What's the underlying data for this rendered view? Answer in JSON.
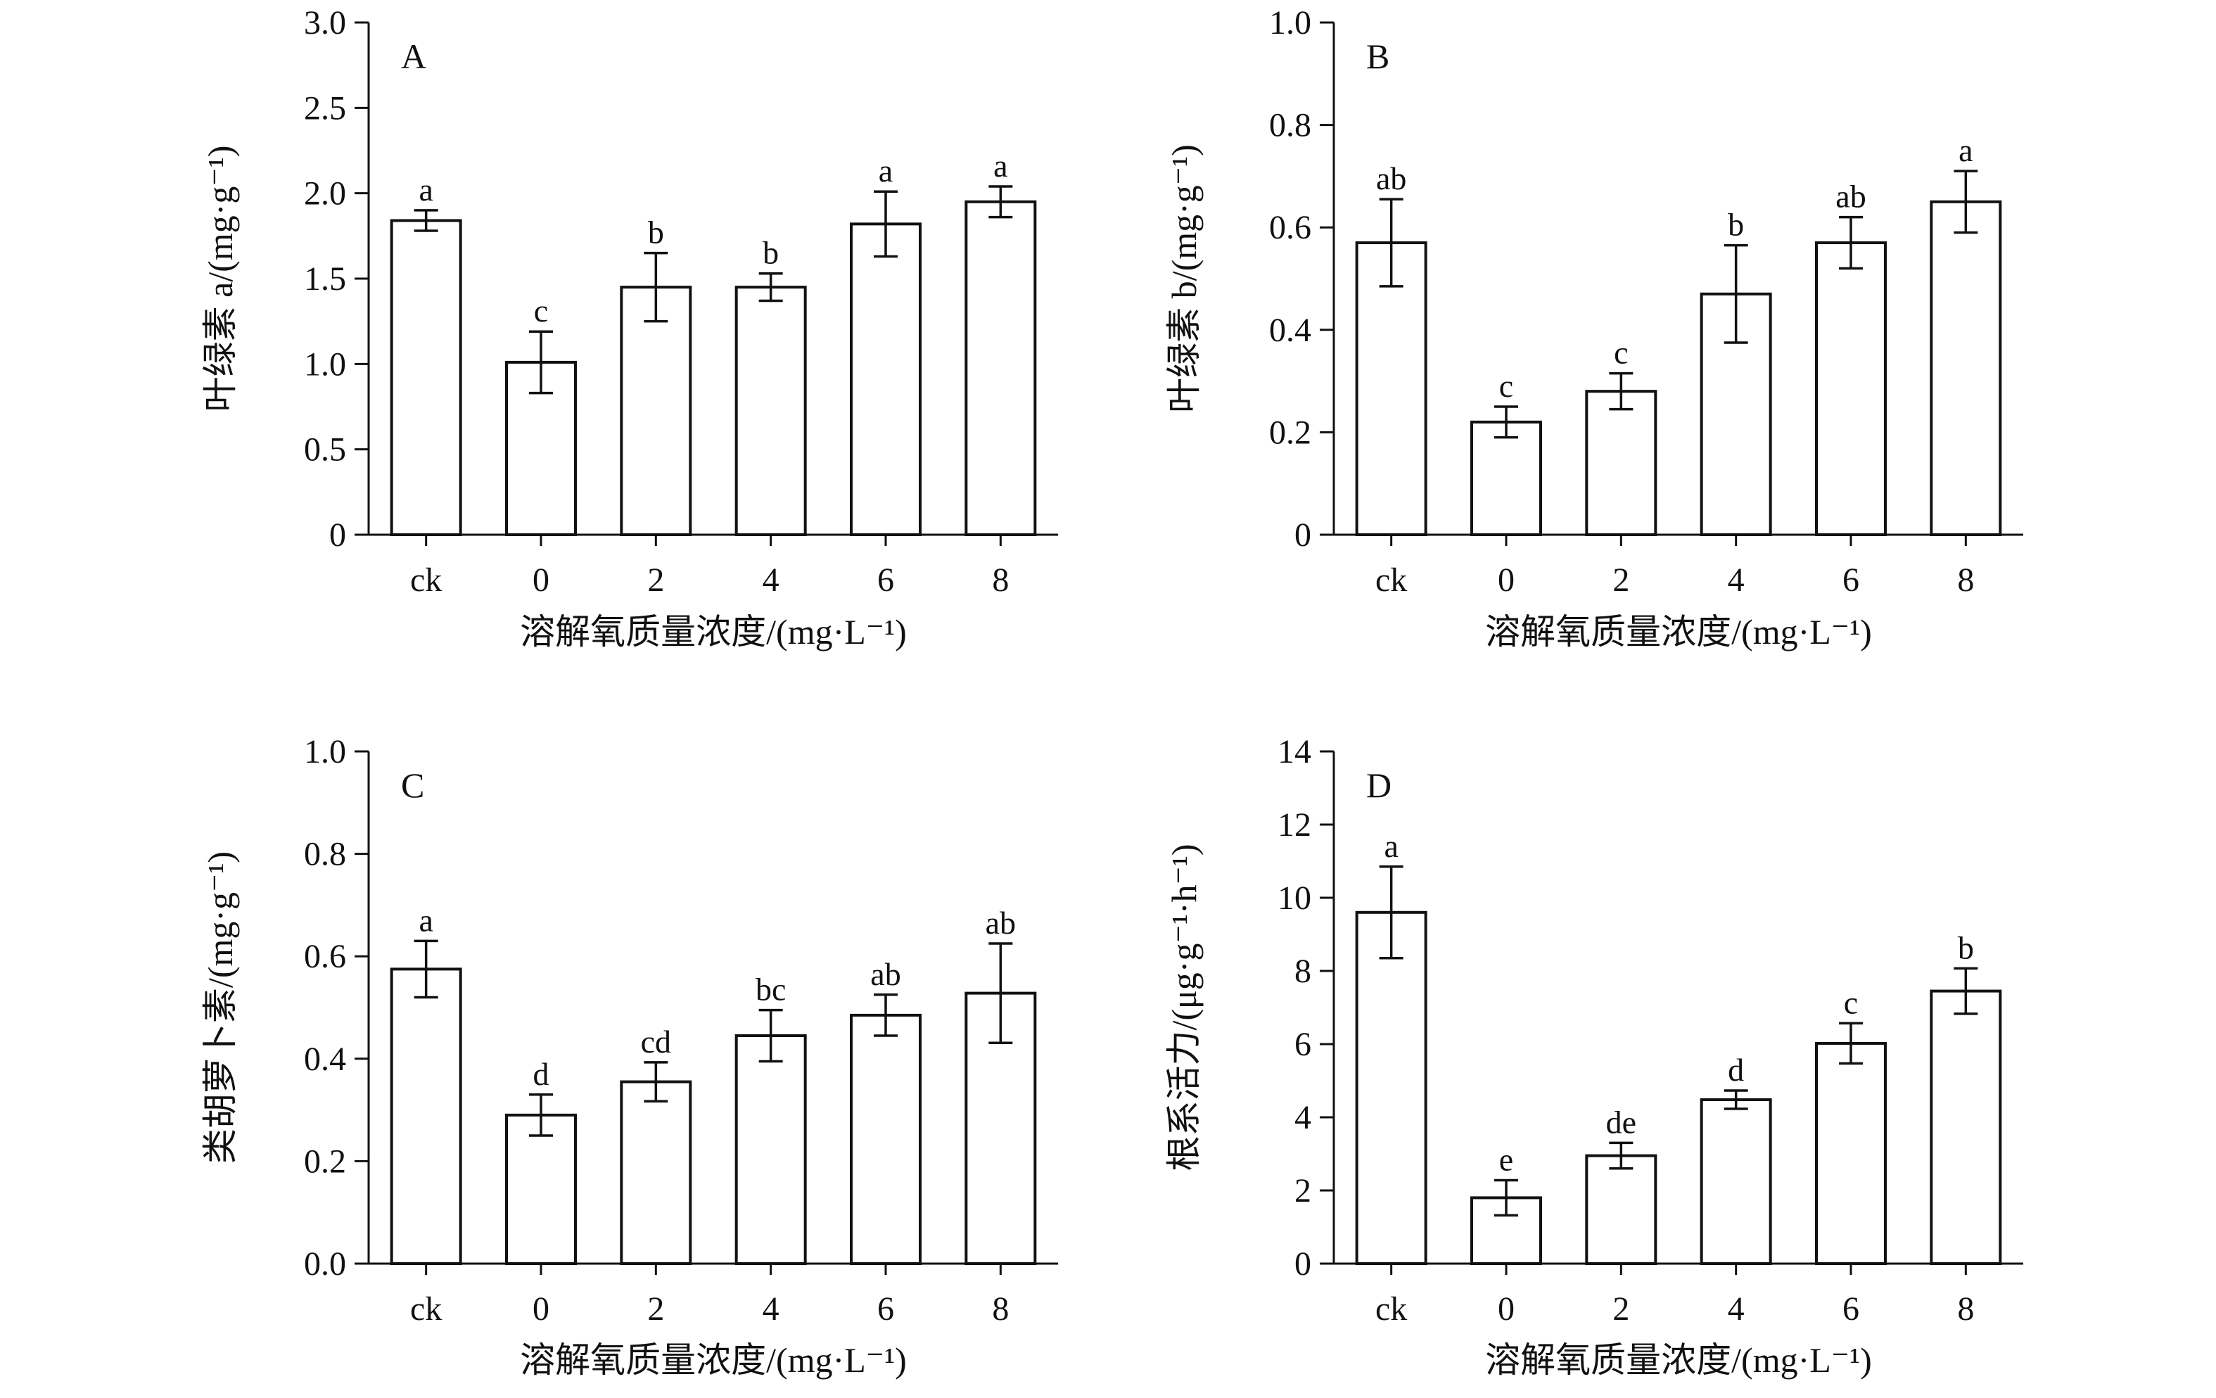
{
  "chart_data": [
    {
      "type": "bar",
      "panel_label": "A",
      "xlabel": "溶解氧质量浓度/(mg·L⁻¹)",
      "ylabel": "叶绿素 a/(mg·g⁻¹)",
      "categories": [
        "ck",
        "0",
        "2",
        "4",
        "6",
        "8"
      ],
      "values": [
        1.84,
        1.01,
        1.45,
        1.45,
        1.82,
        1.95
      ],
      "errors": [
        0.06,
        0.18,
        0.2,
        0.08,
        0.19,
        0.09
      ],
      "significance": [
        "a",
        "c",
        "b",
        "b",
        "a",
        "a"
      ],
      "ylim": [
        0,
        3.0
      ],
      "yticks": [
        0,
        0.5,
        1.0,
        1.5,
        2.0,
        2.5,
        3.0
      ],
      "ytick_labels": [
        "0",
        "0.5",
        "1.0",
        "1.5",
        "2.0",
        "2.5",
        "3.0"
      ]
    },
    {
      "type": "bar",
      "panel_label": "B",
      "xlabel": "溶解氧质量浓度/(mg·L⁻¹)",
      "ylabel": "叶绿素 b/(mg·g⁻¹)",
      "categories": [
        "ck",
        "0",
        "2",
        "4",
        "6",
        "8"
      ],
      "values": [
        0.57,
        0.22,
        0.28,
        0.47,
        0.57,
        0.65
      ],
      "errors": [
        0.085,
        0.03,
        0.035,
        0.095,
        0.05,
        0.06
      ],
      "significance": [
        "ab",
        "c",
        "c",
        "b",
        "ab",
        "a"
      ],
      "ylim": [
        0,
        1.0
      ],
      "yticks": [
        0,
        0.2,
        0.4,
        0.6,
        0.8,
        1.0
      ],
      "ytick_labels": [
        "0",
        "0.2",
        "0.4",
        "0.6",
        "0.8",
        "1.0"
      ]
    },
    {
      "type": "bar",
      "panel_label": "C",
      "xlabel": "溶解氧质量浓度/(mg·L⁻¹)",
      "ylabel": "类胡萝卜素/(mg·g⁻¹)",
      "categories": [
        "ck",
        "0",
        "2",
        "4",
        "6",
        "8"
      ],
      "values": [
        0.575,
        0.29,
        0.355,
        0.445,
        0.485,
        0.528
      ],
      "errors": [
        0.055,
        0.04,
        0.038,
        0.05,
        0.04,
        0.097
      ],
      "significance": [
        "a",
        "d",
        "cd",
        "bc",
        "ab",
        "ab"
      ],
      "ylim": [
        0,
        1.0
      ],
      "yticks": [
        0,
        0.2,
        0.4,
        0.6,
        0.8,
        1.0
      ],
      "ytick_labels": [
        "0.0",
        "0.2",
        "0.4",
        "0.6",
        "0.8",
        "1.0"
      ]
    },
    {
      "type": "bar",
      "panel_label": "D",
      "xlabel": "溶解氧质量浓度/(mg·L⁻¹)",
      "ylabel": "根系活力/(μg·g⁻¹·h⁻¹)",
      "categories": [
        "ck",
        "0",
        "2",
        "4",
        "6",
        "8"
      ],
      "values": [
        9.6,
        1.8,
        2.95,
        4.48,
        6.02,
        7.45
      ],
      "errors": [
        1.25,
        0.48,
        0.35,
        0.25,
        0.55,
        0.62
      ],
      "significance": [
        "a",
        "e",
        "de",
        "d",
        "c",
        "b"
      ],
      "ylim": [
        0,
        14
      ],
      "yticks": [
        0,
        2,
        4,
        6,
        8,
        10,
        12,
        14
      ],
      "ytick_labels": [
        "0",
        "2",
        "4",
        "6",
        "8",
        "10",
        "12",
        "14"
      ]
    }
  ]
}
